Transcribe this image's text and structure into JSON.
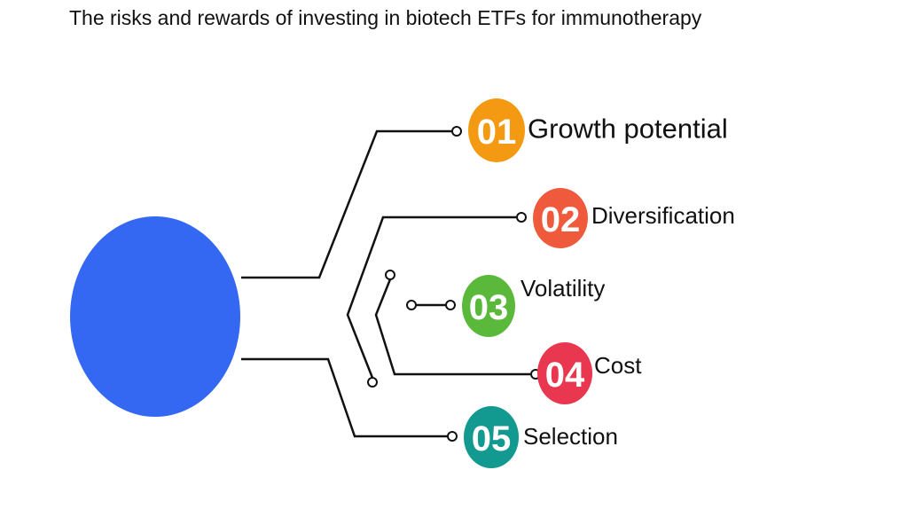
{
  "title": "The risks and rewards of investing in biotech ETFs for immunotherapy",
  "items": [
    {
      "number": "01",
      "label": "Growth potential"
    },
    {
      "number": "02",
      "label": "Diversification"
    },
    {
      "number": "03",
      "label": "Volatility"
    },
    {
      "number": "04",
      "label": "Cost"
    },
    {
      "number": "05",
      "label": "Selection"
    }
  ]
}
